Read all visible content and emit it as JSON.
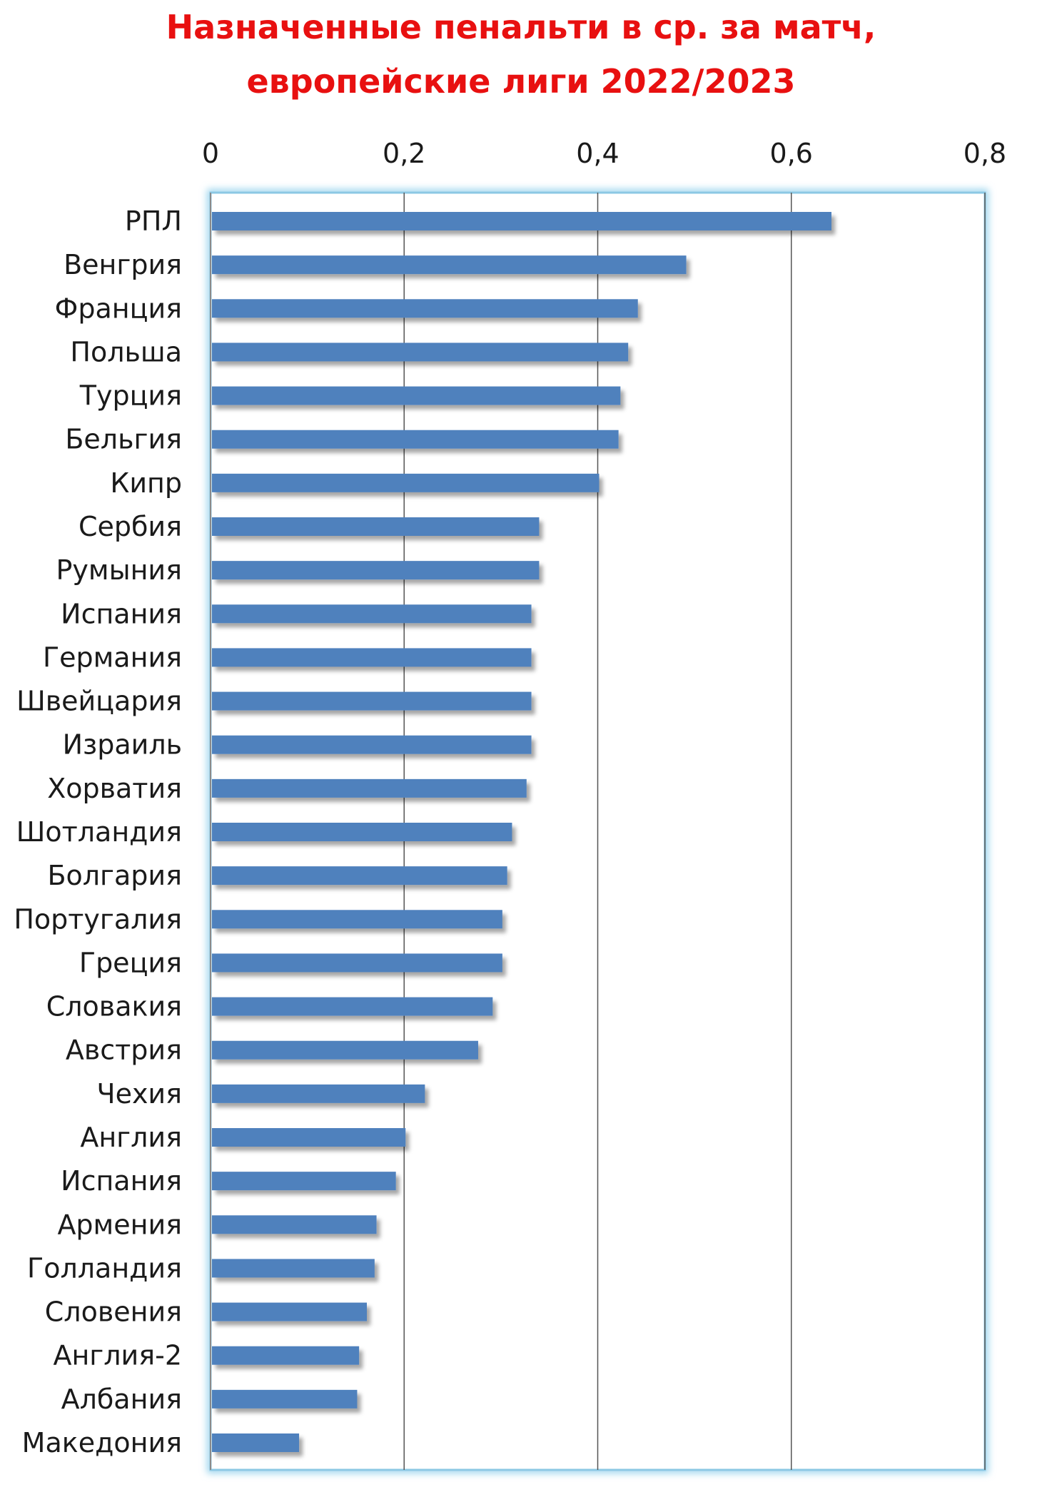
{
  "chart_data": {
    "type": "bar",
    "orientation": "horizontal",
    "title_lines": [
      "Назначенные пенальти в ср. за матч,",
      "европейские лиги 2022/2023"
    ],
    "categories": [
      "РПЛ",
      "Венгрия",
      "Франция",
      "Польша",
      "Турция",
      "Бельгия",
      "Кипр",
      "Сербия",
      "Румыния",
      "Испания",
      "Германия",
      "Швейцария",
      "Израиль",
      "Хорватия",
      "Шотландия",
      "Болгария",
      "Португалия",
      "Греция",
      "Словакия",
      "Австрия",
      "Чехия",
      "Англия",
      "Испания",
      "Армения",
      "Голландия",
      "Словения",
      "Англия-2",
      "Албания",
      "Македония"
    ],
    "values": [
      0.64,
      0.49,
      0.44,
      0.43,
      0.422,
      0.42,
      0.4,
      0.338,
      0.338,
      0.33,
      0.33,
      0.33,
      0.33,
      0.325,
      0.31,
      0.305,
      0.3,
      0.3,
      0.29,
      0.275,
      0.22,
      0.2,
      0.19,
      0.17,
      0.168,
      0.16,
      0.152,
      0.15,
      0.09
    ],
    "xlim": [
      0,
      0.8
    ],
    "x_ticks": [
      "0",
      "0,2",
      "0,4",
      "0,6",
      "0,8"
    ],
    "x_tick_values": [
      0,
      0.2,
      0.4,
      0.6,
      0.8
    ],
    "x_axis_position": "top",
    "grid": "vertical",
    "legend": "none",
    "colors": {
      "bar": "#4f81bd",
      "title": "#e81010",
      "gridline": "#555555",
      "frame_glow": "#9fd6ee"
    }
  }
}
